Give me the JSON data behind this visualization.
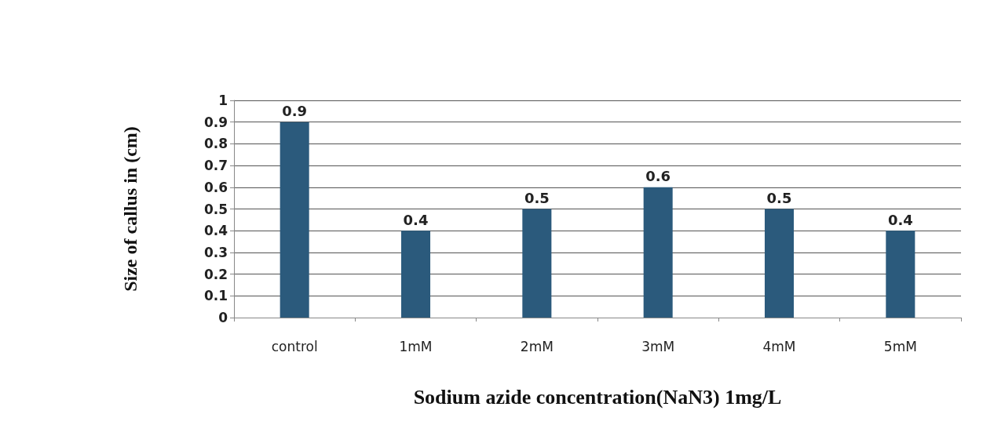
{
  "chart_data": {
    "type": "bar",
    "xlabel": "Sodium azide concentration(NaN3) 1mg/L",
    "ylabel": "Size of callus in (cm)",
    "categories": [
      "control",
      "1mM",
      "2mM",
      "3mM",
      "4mM",
      "5mM"
    ],
    "values": [
      0.9,
      0.4,
      0.5,
      0.6,
      0.5,
      0.4
    ],
    "color": "#2b5a7c",
    "ylim": [
      0,
      1
    ],
    "yticks": [
      0,
      0.1,
      0.2,
      0.3,
      0.4,
      0.5,
      0.6,
      0.7,
      0.8,
      0.9,
      1
    ],
    "grid": "y",
    "data_labels": true
  }
}
